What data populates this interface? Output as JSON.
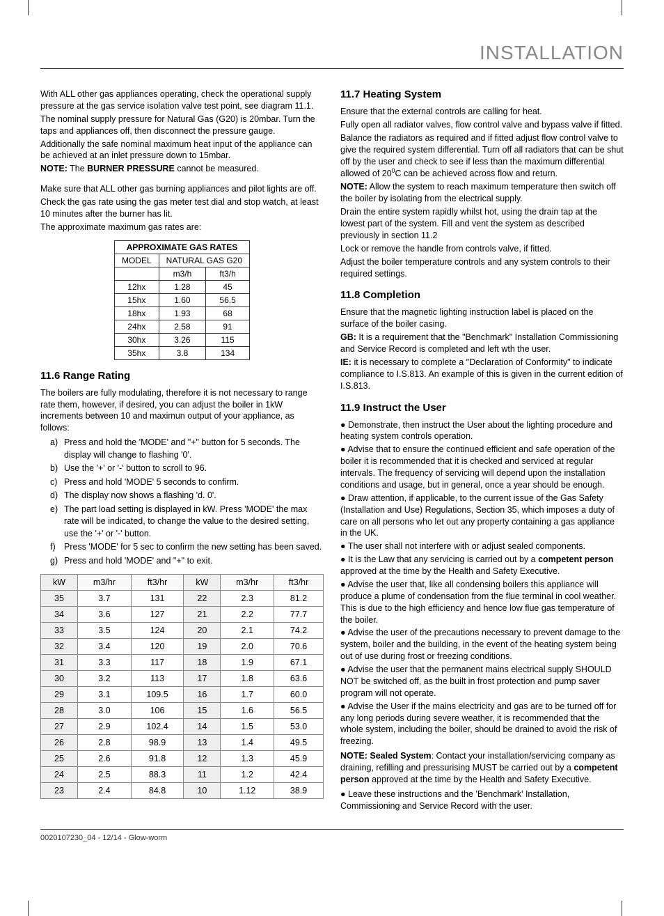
{
  "header": {
    "title": "INSTALLATION"
  },
  "left": {
    "intro": [
      "With ALL other gas appliances operating, check the operational supply pressure at the gas service isolation valve test point, see diagram 11.1.",
      "The nominal supply pressure for Natural Gas (G20) is 20mbar. Turn the taps and appliances off, then disconnect the pressure gauge.",
      "Additionally the safe nominal maximum heat input of the appliance can be achieved at an inlet pressure down to 15mbar."
    ],
    "note1_prefix": "NOTE:",
    "note1_text": " The ",
    "note1_bold": "BURNER PRESSURE",
    "note1_rest": " cannot be measured.",
    "intro2": [
      "Make sure that ALL other gas burning appliances and pilot lights are off.",
      "Check the gas rate using the gas meter test dial and stop watch, at least 10 minutes after the burner has lit.",
      "The approximate maximum gas rates are:"
    ],
    "gas_table": {
      "title": "APPROXIMATE GAS RATES",
      "col1": "MODEL",
      "col2": "NATURAL GAS  G20",
      "sub1": "m3/h",
      "sub2": "ft3/h",
      "rows": [
        [
          "12hx",
          "1.28",
          "45"
        ],
        [
          "15hx",
          "1.60",
          "56.5"
        ],
        [
          "18hx",
          "1.93",
          "68"
        ],
        [
          "24hx",
          "2.58",
          "91"
        ],
        [
          "30hx",
          "3.26",
          "115"
        ],
        [
          "35hx",
          "3.8",
          "134"
        ]
      ]
    },
    "h116": "11.6 Range Rating",
    "p116": "The boilers are fully modulating, therefore it is not necessary to range rate them, however, if desired, you can adjust the boiler in 1kW increments between 10 and maximun output of your appliance, as follows:",
    "steps": [
      {
        "lbl": "a)",
        "txt": "Press and hold the 'MODE' and \"+\" button for 5 seconds.  The display will change to flashing '0'."
      },
      {
        "lbl": "b)",
        "txt": "Use the  '+'  or  '-'  button to scroll to 96."
      },
      {
        "lbl": "c)",
        "txt": "Press and hold  'MODE' 5 seconds to confirm."
      },
      {
        "lbl": "d)",
        "txt": "The display now shows a flashing  'd. 0'."
      },
      {
        "lbl": "e)",
        "txt": "The part load setting is displayed in kW. Press  'MODE'  the max rate will be indicated, to change the value to the desired setting, use the  '+'  or  '-'  button."
      },
      {
        "lbl": "f)",
        "txt": "Press  'MODE' for 5 sec to confirm the new setting has been saved."
      },
      {
        "lbl": "g)",
        "txt": "Press and hold  'MODE' and \"+\"  to exit."
      }
    ],
    "rate_table": {
      "headers": [
        "kW",
        "m3/hr",
        "ft3/hr",
        "kW",
        "m3/hr",
        "ft3/hr"
      ],
      "rows": [
        [
          "35",
          "3.7",
          "131",
          "22",
          "2.3",
          "81.2"
        ],
        [
          "34",
          "3.6",
          "127",
          "21",
          "2.2",
          "77.7"
        ],
        [
          "33",
          "3.5",
          "124",
          "20",
          "2.1",
          "74.2"
        ],
        [
          "32",
          "3.4",
          "120",
          "19",
          "2.0",
          "70.6"
        ],
        [
          "31",
          "3.3",
          "117",
          "18",
          "1.9",
          "67.1"
        ],
        [
          "30",
          "3.2",
          "113",
          "17",
          "1.8",
          "63.6"
        ],
        [
          "29",
          "3.1",
          "109.5",
          "16",
          "1.7",
          "60.0"
        ],
        [
          "28",
          "3.0",
          "106",
          "15",
          "1.6",
          "56.5"
        ],
        [
          "27",
          "2.9",
          "102.4",
          "14",
          "1.5",
          "53.0"
        ],
        [
          "26",
          "2.8",
          "98.9",
          "13",
          "1.4",
          "49.5"
        ],
        [
          "25",
          "2.6",
          "91.8",
          "12",
          "1.3",
          "45.9"
        ],
        [
          "24",
          "2.5",
          "88.3",
          "11",
          "1.2",
          "42.4"
        ],
        [
          "23",
          "2.4",
          "84.8",
          "10",
          "1.12",
          "38.9"
        ]
      ]
    }
  },
  "right": {
    "h117": "11.7 Heating System",
    "p117a": "Ensure that the external controls are calling for heat.",
    "p117b": "Fully open all radiator valves, flow control valve and bypass valve if fitted.",
    "p117c_pre": "Balance the radiators as required and if fitted adjust flow control valve to give the required system differential. Turn off all radiators that can be shut off by the user and check to see if less than the maximum differential allowed of 20",
    "p117c_post": "C can be achieved across flow and return.",
    "note2_prefix": "NOTE:",
    "note2_text": " Allow the system to reach maximum temperature then switch off the boiler by isolating from the electrical supply.",
    "p117d": "Drain the entire system rapidly whilst hot, using the drain tap at the lowest part of the system. Fill and vent the system as described previously in section 11.2",
    "p117e": "Lock or remove the handle from controls valve, if fitted.",
    "p117f": "Adjust the boiler temperature controls and any system controls to their required settings.",
    "h118": "11.8 Completion",
    "p118a": "Ensure that the magnetic lighting instruction label is placed on the surface of the boiler casing.",
    "gb_prefix": "GB:",
    "p118b": " It is a requirement that the \"Benchmark\" Installation Commissioning and Service Record is completed and left wth the user.",
    "ie_prefix": "IE:",
    "p118c": " it is necessary to complete a \"Declaration of Conformity\" to indicate compliance to I.S.813. An example of this is given in the current edition of I.S.813.",
    "h119": "11.9 Instruct the User",
    "b1": "Demonstrate, then instruct the User about the lighting procedure and heating system controls operation.",
    "b2": "Advise that to ensure the continued efficient and safe operation of the boiler it is recommended that it is checked and serviced at regular intervals. The frequency of servicing will depend upon the installation conditions and usage, but in general, once a year should be enough.",
    "b3": "Draw attention, if applicable, to the current issue of the Gas Safety (Installation and Use) Regulations, Section 35, which imposes a duty of care on all persons who let out any property containing a gas appliance in the UK.",
    "b4": "The user shall not interfere with or adjust sealed components.",
    "b5_pre": "It is the Law that any servicing is carried out by a ",
    "b5_bold": "competent person",
    "b5_post": " approved at the time by the Health and Safety Executive.",
    "b6": "Advise the user that, like all condensing boilers this appliance will produce a plume of condensation from the flue terminal in cool weather. This is due to the high efficiency and hence low flue gas temperature of the boiler.",
    "b7": "Advise the user of the precautions necessary to prevent damage to the system, boiler and the building, in the event of the heating system being out of use during frost or freezing conditions.",
    "b8": "Advise the user that the permanent mains electrical supply SHOULD NOT be switched off, as the built in frost protection and pump saver program will not operate.",
    "b9": "Advise the User if the mains electricity and gas are to be turned off for any long periods during severe weather, it is recommended that the whole system, including the  boiler, should be drained to avoid the risk of freezing.",
    "note3_bold": "NOTE: Sealed System",
    "note3_text": ": Contact your installation/servicing company as draining, refilling and pressurising MUST be carried out by a ",
    "note3_bold2": "competent person",
    "note3_post": " approved at the time by the Health and Safety Executive.",
    "b10": "Leave these instructions and the 'Benchmark' Installation, Commissioning and Service Record with the user."
  },
  "footer": "0020107230_04 - 12/14 - Glow-worm"
}
